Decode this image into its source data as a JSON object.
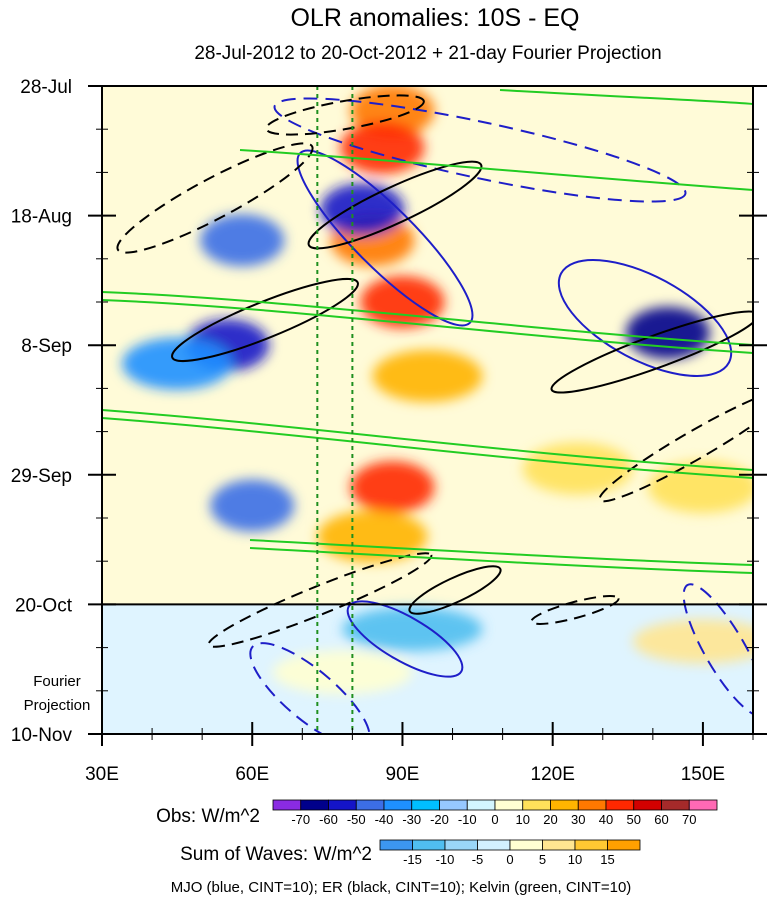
{
  "chart_data": {
    "type": "heatmap",
    "title": "OLR anomalies: 10S - EQ",
    "subtitle": "28-Jul-2012 to 20-Oct-2012 + 21-day Fourier Projection",
    "x_axis": {
      "label": "",
      "range_deg": [
        30,
        160
      ],
      "ticks": [
        30,
        60,
        90,
        120,
        150
      ],
      "tick_labels": [
        "30E",
        "60E",
        "90E",
        "120E",
        "150E"
      ]
    },
    "y_axis": {
      "label": "",
      "range_days": [
        0,
        105
      ],
      "ticks": [
        0,
        21,
        42,
        63,
        84,
        105
      ],
      "tick_labels": [
        "28-Jul",
        "18-Aug",
        "8-Sep",
        "29-Sep",
        "20-Oct",
        "10-Nov"
      ]
    },
    "forecast_start_day": 84,
    "forecast_label_lines": [
      "Fourier",
      "Projection"
    ],
    "reference_lines_deg": [
      73,
      80
    ],
    "obs_colorbar": {
      "label": "Obs: W/m^2",
      "levels": [
        "-70",
        "-60",
        "-50",
        "-40",
        "-30",
        "-20",
        "-10",
        "0",
        "10",
        "20",
        "30",
        "40",
        "50",
        "60",
        "70"
      ],
      "colors": [
        "#8a2be2",
        "#00008b",
        "#1414c8",
        "#3c6ee6",
        "#1e90ff",
        "#00bfff",
        "#96c8ff",
        "#d2f5ff",
        "#ffffd2",
        "#ffe15a",
        "#ffb400",
        "#ff7800",
        "#ff2800",
        "#d20000",
        "#a52a2a",
        "#ff69b4"
      ]
    },
    "wave_colorbar": {
      "label": "Sum of Waves: W/m^2",
      "levels": [
        "-15",
        "-10",
        "-5",
        "0",
        "5",
        "10",
        "15"
      ],
      "colors": [
        "#3c96f0",
        "#50bef0",
        "#9ad6f8",
        "#d2f0ff",
        "#ffffd2",
        "#ffe691",
        "#ffc832",
        "#ffa000"
      ]
    },
    "legend_note": "MJO (blue, CINT=10); ER (black, CINT=10); Kelvin (green, CINT=10)",
    "contour_colors": {
      "mjo": "#1e1ec8",
      "er": "#000000",
      "kelvin": "#22cc22"
    },
    "obs_anomaly_regions": [
      {
        "lon": 88,
        "day": 4,
        "value": 40
      },
      {
        "lon": 86,
        "day": 10,
        "value": 50
      },
      {
        "lon": 84,
        "day": 25,
        "value": 40
      },
      {
        "lon": 90,
        "day": 35,
        "value": 50
      },
      {
        "lon": 95,
        "day": 47,
        "value": 30
      },
      {
        "lon": 88,
        "day": 65,
        "value": 50
      },
      {
        "lon": 84,
        "day": 73,
        "value": 30
      },
      {
        "lon": 82,
        "day": 20,
        "value": -50
      },
      {
        "lon": 58,
        "day": 25,
        "value": -40
      },
      {
        "lon": 55,
        "day": 42,
        "value": -50
      },
      {
        "lon": 60,
        "day": 68,
        "value": -40
      },
      {
        "lon": 45,
        "day": 45,
        "value": -30
      },
      {
        "lon": 143,
        "day": 40,
        "value": -60
      },
      {
        "lon": 125,
        "day": 62,
        "value": 20
      },
      {
        "lon": 150,
        "day": 65,
        "value": 20
      }
    ],
    "projection_regions": [
      {
        "lon": 92,
        "day": 88,
        "value": -10
      },
      {
        "lon": 78,
        "day": 95,
        "value": 5
      },
      {
        "lon": 150,
        "day": 90,
        "value": 10
      }
    ]
  }
}
